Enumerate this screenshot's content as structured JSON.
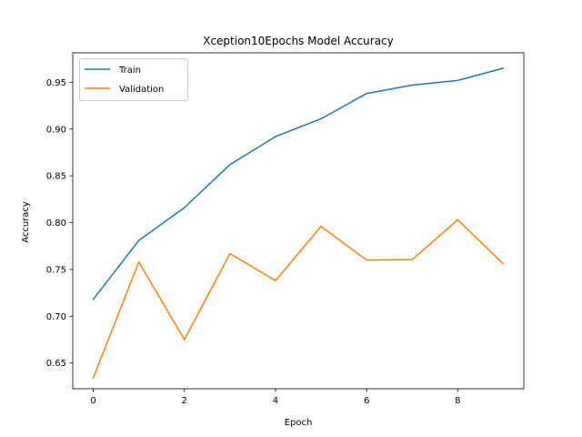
{
  "chart_data": {
    "type": "line",
    "title": "Xception10Epochs Model Accuracy",
    "xlabel": "Epoch",
    "ylabel": "Accuracy",
    "x": [
      0,
      1,
      2,
      3,
      4,
      5,
      6,
      7,
      8,
      9
    ],
    "xlim": [
      -0.45,
      9.45
    ],
    "ylim": [
      0.6225,
      0.9815
    ],
    "xticks": [
      0,
      2,
      4,
      6,
      8
    ],
    "yticks": [
      0.65,
      0.7,
      0.75,
      0.8,
      0.85,
      0.9,
      0.95
    ],
    "xtick_labels": [
      "0",
      "2",
      "4",
      "6",
      "8"
    ],
    "ytick_labels": [
      "0.65",
      "0.70",
      "0.75",
      "0.80",
      "0.85",
      "0.90",
      "0.95"
    ],
    "grid": false,
    "legend_position": "upper-left",
    "series": [
      {
        "name": "Train",
        "color": "#1f77b4",
        "values": [
          0.718,
          0.781,
          0.816,
          0.862,
          0.892,
          0.911,
          0.938,
          0.947,
          0.952,
          0.965
        ]
      },
      {
        "name": "Validation",
        "color": "#ff7f0e",
        "values": [
          0.634,
          0.758,
          0.675,
          0.767,
          0.738,
          0.796,
          0.76,
          0.7605,
          0.803,
          0.756
        ]
      }
    ]
  }
}
